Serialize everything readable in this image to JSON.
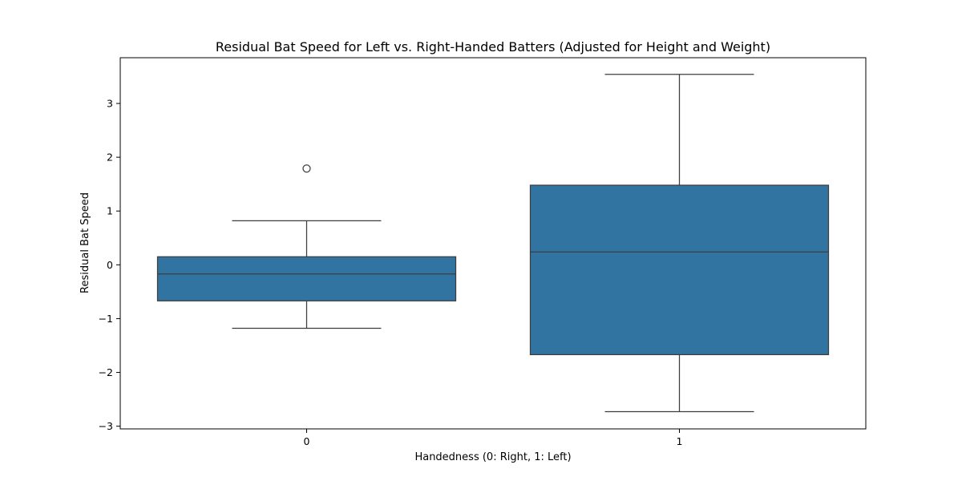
{
  "chart_data": {
    "type": "box",
    "title": "Residual Bat Speed for Left vs. Right-Handed Batters (Adjusted for Height and Weight)",
    "xlabel": "Handedness (0: Right, 1: Left)",
    "ylabel": "Residual Bat Speed",
    "categories": [
      "0",
      "1"
    ],
    "ylim": [
      -3.05,
      3.85
    ],
    "y_ticks": [
      -3,
      -2,
      -1,
      0,
      1,
      2,
      3
    ],
    "y_tick_labels": [
      "−3",
      "−2",
      "−1",
      "0",
      "1",
      "2",
      "3"
    ],
    "grid": false,
    "box_color": "#3274a1",
    "line_color": "#3d3d3d",
    "boxes": [
      {
        "category": "0",
        "whisker_low": -1.18,
        "q1": -0.67,
        "median": -0.17,
        "q3": 0.15,
        "whisker_high": 0.82,
        "outliers": [
          1.79
        ]
      },
      {
        "category": "1",
        "whisker_low": -2.73,
        "q1": -1.67,
        "median": 0.24,
        "q3": 1.48,
        "whisker_high": 3.54,
        "outliers": []
      }
    ]
  }
}
